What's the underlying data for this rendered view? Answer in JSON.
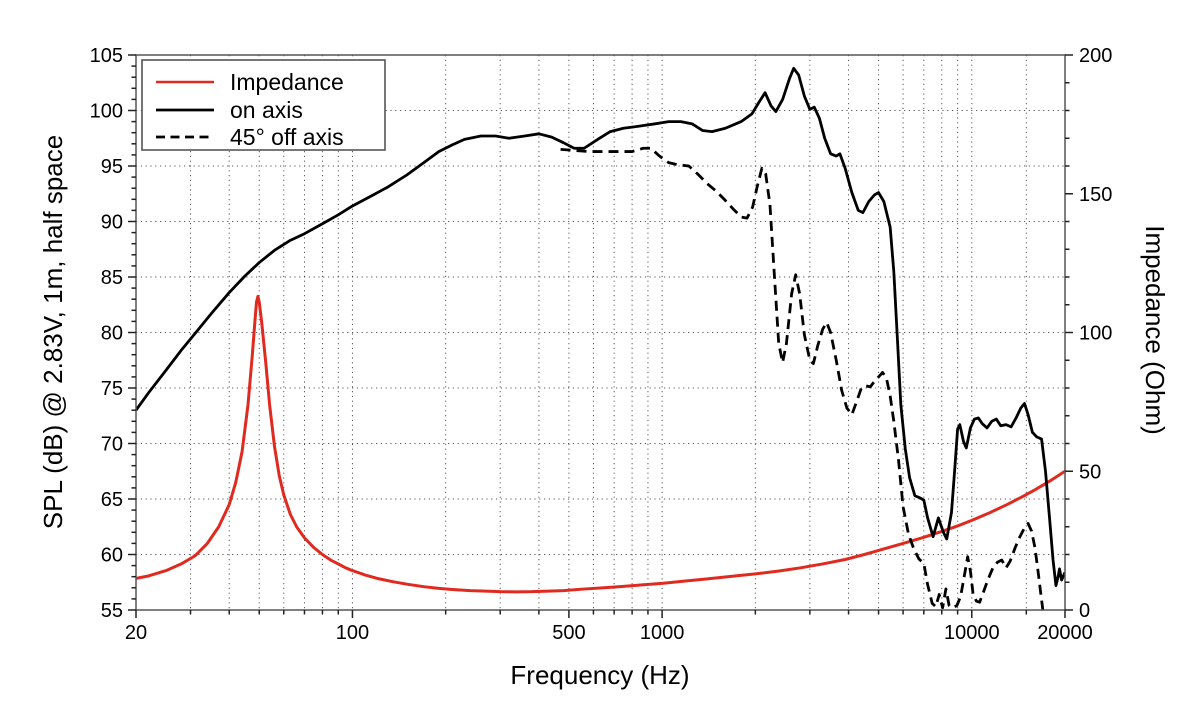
{
  "figure": {
    "background": "#ffffff"
  },
  "chart_data": {
    "type": "line",
    "title": "",
    "x_axis": {
      "label": "Frequency (Hz)",
      "scale": "log",
      "min": 20,
      "max": 20000,
      "major_ticks": [
        20,
        100,
        500,
        1000,
        10000,
        20000
      ],
      "major_tick_labels": [
        "20",
        "100",
        "500",
        "1000",
        "10000",
        "20000"
      ],
      "minor_ticks": [
        30,
        40,
        50,
        60,
        70,
        80,
        90,
        200,
        300,
        400,
        600,
        700,
        800,
        900,
        2000,
        3000,
        4000,
        5000,
        6000,
        7000,
        8000,
        9000,
        15000
      ],
      "grid": "dotted"
    },
    "y_axis_left": {
      "label": "SPL (dB) @ 2.83V, 1m, half space",
      "min": 55,
      "max": 105,
      "major_ticks": [
        55,
        60,
        65,
        70,
        75,
        80,
        85,
        90,
        95,
        100,
        105
      ],
      "minor_tick_step": 1,
      "grid_lines": [
        60,
        65,
        70,
        75,
        80,
        85,
        90,
        95,
        100
      ]
    },
    "y_axis_right": {
      "label": "Impedance (Ohm)",
      "min": 0,
      "max": 200,
      "major_ticks": [
        0,
        50,
        100,
        150,
        200
      ],
      "minor_tick_step": 10
    },
    "legend": {
      "position": "top-left",
      "entries": [
        {
          "label": "Impedance",
          "color": "#e02a20",
          "style": "solid"
        },
        {
          "label": "on axis",
          "color": "#000000",
          "style": "solid"
        },
        {
          "label": "45° off axis",
          "color": "#000000",
          "style": "dashed"
        }
      ]
    },
    "series": [
      {
        "name": "Impedance",
        "axis": "right",
        "unit": "Ohm",
        "color": "#e02a20",
        "style": "solid",
        "points": [
          [
            20,
            11.4
          ],
          [
            22,
            12.3
          ],
          [
            25,
            14.2
          ],
          [
            28,
            16.6
          ],
          [
            31,
            19.5
          ],
          [
            34,
            24
          ],
          [
            37,
            30
          ],
          [
            40,
            38
          ],
          [
            42,
            46
          ],
          [
            44,
            57
          ],
          [
            46,
            74
          ],
          [
            47.5,
            92
          ],
          [
            48.5,
            105
          ],
          [
            49,
            111
          ],
          [
            49.5,
            113
          ],
          [
            50,
            111
          ],
          [
            51,
            103
          ],
          [
            52.5,
            89
          ],
          [
            54,
            74
          ],
          [
            56,
            59
          ],
          [
            58,
            48.5
          ],
          [
            60,
            41.5
          ],
          [
            63,
            34.5
          ],
          [
            66,
            30
          ],
          [
            70,
            26
          ],
          [
            75,
            22.5
          ],
          [
            80,
            20
          ],
          [
            85,
            18
          ],
          [
            90,
            16.6
          ],
          [
            95,
            15.2
          ],
          [
            100,
            14.2
          ],
          [
            110,
            12.6
          ],
          [
            120,
            11.4
          ],
          [
            135,
            10.2
          ],
          [
            150,
            9.3
          ],
          [
            170,
            8.4
          ],
          [
            190,
            7.8
          ],
          [
            210,
            7.4
          ],
          [
            240,
            7
          ],
          [
            270,
            6.8
          ],
          [
            300,
            6.6
          ],
          [
            340,
            6.55
          ],
          [
            380,
            6.6
          ],
          [
            430,
            6.8
          ],
          [
            480,
            7
          ],
          [
            550,
            7.5
          ],
          [
            650,
            8
          ],
          [
            750,
            8.5
          ],
          [
            850,
            9
          ],
          [
            1000,
            9.6
          ],
          [
            1200,
            10.5
          ],
          [
            1400,
            11.2
          ],
          [
            1700,
            12.2
          ],
          [
            2000,
            13
          ],
          [
            2400,
            14.1
          ],
          [
            2800,
            15.2
          ],
          [
            3300,
            16.6
          ],
          [
            3900,
            18.2
          ],
          [
            4500,
            20
          ],
          [
            5200,
            22
          ],
          [
            6000,
            24
          ],
          [
            7000,
            26.2
          ],
          [
            8000,
            28.3
          ],
          [
            9000,
            30.3
          ],
          [
            10000,
            32.3
          ],
          [
            11500,
            35.2
          ],
          [
            13000,
            38
          ],
          [
            14500,
            40.7
          ],
          [
            16000,
            43.3
          ],
          [
            18000,
            46.7
          ],
          [
            20000,
            50
          ]
        ]
      },
      {
        "name": "on axis",
        "axis": "left",
        "unit": "dB",
        "color": "#000000",
        "style": "solid",
        "points": [
          [
            20,
            73
          ],
          [
            22,
            74.6
          ],
          [
            25,
            76.6
          ],
          [
            28,
            78.4
          ],
          [
            31,
            79.9
          ],
          [
            35,
            81.7
          ],
          [
            40,
            83.6
          ],
          [
            45,
            85.1
          ],
          [
            50,
            86.3
          ],
          [
            56,
            87.4
          ],
          [
            63,
            88.3
          ],
          [
            70,
            88.9
          ],
          [
            80,
            89.8
          ],
          [
            90,
            90.6
          ],
          [
            100,
            91.4
          ],
          [
            115,
            92.3
          ],
          [
            130,
            93.1
          ],
          [
            150,
            94.2
          ],
          [
            170,
            95.3
          ],
          [
            190,
            96.3
          ],
          [
            210,
            96.9
          ],
          [
            230,
            97.4
          ],
          [
            260,
            97.7
          ],
          [
            290,
            97.7
          ],
          [
            320,
            97.5
          ],
          [
            360,
            97.7
          ],
          [
            400,
            97.9
          ],
          [
            440,
            97.6
          ],
          [
            480,
            97.1
          ],
          [
            520,
            96.6
          ],
          [
            560,
            96.6
          ],
          [
            620,
            97.4
          ],
          [
            680,
            98.1
          ],
          [
            750,
            98.4
          ],
          [
            850,
            98.6
          ],
          [
            950,
            98.8
          ],
          [
            1050,
            99
          ],
          [
            1150,
            99
          ],
          [
            1250,
            98.8
          ],
          [
            1350,
            98.2
          ],
          [
            1450,
            98.1
          ],
          [
            1600,
            98.4
          ],
          [
            1800,
            99
          ],
          [
            1950,
            99.7
          ],
          [
            2050,
            100.7
          ],
          [
            2150,
            101.6
          ],
          [
            2250,
            100.4
          ],
          [
            2330,
            99.9
          ],
          [
            2450,
            101
          ],
          [
            2580,
            102.9
          ],
          [
            2660,
            103.8
          ],
          [
            2760,
            103.2
          ],
          [
            2880,
            101.3
          ],
          [
            3000,
            100.1
          ],
          [
            3100,
            100.3
          ],
          [
            3220,
            99.3
          ],
          [
            3350,
            97.5
          ],
          [
            3500,
            96.1
          ],
          [
            3650,
            95.9
          ],
          [
            3750,
            96.1
          ],
          [
            3900,
            94.8
          ],
          [
            4100,
            92.6
          ],
          [
            4300,
            91
          ],
          [
            4450,
            90.8
          ],
          [
            4650,
            91.8
          ],
          [
            4850,
            92.4
          ],
          [
            5000,
            92.6
          ],
          [
            5200,
            91.8
          ],
          [
            5450,
            89.5
          ],
          [
            5600,
            85.5
          ],
          [
            5750,
            79.5
          ],
          [
            5900,
            73.5
          ],
          [
            6100,
            69.5
          ],
          [
            6300,
            66.9
          ],
          [
            6550,
            65.3
          ],
          [
            6800,
            65.1
          ],
          [
            7000,
            64.9
          ],
          [
            7200,
            63.3
          ],
          [
            7500,
            61.6
          ],
          [
            7800,
            63.3
          ],
          [
            8100,
            62
          ],
          [
            8300,
            61.4
          ],
          [
            8600,
            63.8
          ],
          [
            8800,
            67.5
          ],
          [
            9000,
            71.3
          ],
          [
            9150,
            71.7
          ],
          [
            9400,
            70.2
          ],
          [
            9600,
            69.6
          ],
          [
            9900,
            71.4
          ],
          [
            10200,
            72.2
          ],
          [
            10500,
            72.3
          ],
          [
            10800,
            71.8
          ],
          [
            11200,
            71.4
          ],
          [
            11600,
            72
          ],
          [
            12000,
            72.2
          ],
          [
            12400,
            71.6
          ],
          [
            12900,
            71.7
          ],
          [
            13400,
            71.5
          ],
          [
            13900,
            72.3
          ],
          [
            14400,
            73.2
          ],
          [
            14800,
            73.6
          ],
          [
            15200,
            72.6
          ],
          [
            15700,
            71
          ],
          [
            16200,
            70.6
          ],
          [
            16800,
            70.4
          ],
          [
            17300,
            67.5
          ],
          [
            17800,
            63.5
          ],
          [
            18300,
            59.5
          ],
          [
            18700,
            57.2
          ],
          [
            19000,
            58
          ],
          [
            19200,
            58.7
          ],
          [
            19500,
            57.7
          ],
          [
            20000,
            58.4
          ]
        ]
      },
      {
        "name": "45° off axis",
        "axis": "left",
        "unit": "dB",
        "color": "#000000",
        "style": "dashed",
        "points": [
          [
            470,
            96.5
          ],
          [
            520,
            96.4
          ],
          [
            580,
            96.3
          ],
          [
            650,
            96.3
          ],
          [
            720,
            96.3
          ],
          [
            800,
            96.3
          ],
          [
            870,
            96.6
          ],
          [
            920,
            96.6
          ],
          [
            980,
            95.9
          ],
          [
            1050,
            95.3
          ],
          [
            1130,
            95.1
          ],
          [
            1220,
            95
          ],
          [
            1300,
            94.3
          ],
          [
            1400,
            93.4
          ],
          [
            1500,
            92.7
          ],
          [
            1600,
            91.9
          ],
          [
            1700,
            91.1
          ],
          [
            1800,
            90.4
          ],
          [
            1880,
            90.3
          ],
          [
            1960,
            91.3
          ],
          [
            2030,
            93.2
          ],
          [
            2100,
            94.8
          ],
          [
            2160,
            94.3
          ],
          [
            2230,
            91.5
          ],
          [
            2300,
            85.5
          ],
          [
            2380,
            79
          ],
          [
            2450,
            77.3
          ],
          [
            2520,
            79
          ],
          [
            2620,
            83.5
          ],
          [
            2700,
            85.2
          ],
          [
            2780,
            83.5
          ],
          [
            2880,
            79.8
          ],
          [
            3000,
            77.5
          ],
          [
            3080,
            77.2
          ],
          [
            3180,
            78.8
          ],
          [
            3300,
            80.3
          ],
          [
            3400,
            80.9
          ],
          [
            3500,
            80
          ],
          [
            3650,
            77.5
          ],
          [
            3800,
            74.8
          ],
          [
            3950,
            73.2
          ],
          [
            4100,
            72.6
          ],
          [
            4250,
            73.8
          ],
          [
            4400,
            75
          ],
          [
            4550,
            75.2
          ],
          [
            4700,
            75.1
          ],
          [
            4850,
            75.6
          ],
          [
            5000,
            76
          ],
          [
            5150,
            76.4
          ],
          [
            5300,
            75.9
          ],
          [
            5450,
            74.3
          ],
          [
            5600,
            72
          ],
          [
            5800,
            68.5
          ],
          [
            6000,
            64.3
          ],
          [
            6250,
            61.8
          ],
          [
            6500,
            60.5
          ],
          [
            6750,
            59.6
          ],
          [
            7000,
            59.2
          ],
          [
            7200,
            57.3
          ],
          [
            7450,
            55.6
          ],
          [
            7650,
            55.3
          ],
          [
            7850,
            56.4
          ],
          [
            8050,
            55.2
          ],
          [
            8250,
            56.9
          ],
          [
            8450,
            55.4
          ],
          [
            8700,
            55.2
          ],
          [
            8950,
            55.4
          ],
          [
            9200,
            56.2
          ],
          [
            9450,
            58
          ],
          [
            9700,
            59.8
          ],
          [
            9900,
            58.5
          ],
          [
            10100,
            56.4
          ],
          [
            10350,
            55.8
          ],
          [
            10600,
            55.7
          ],
          [
            10900,
            56.6
          ],
          [
            11300,
            57.8
          ],
          [
            11700,
            58.8
          ],
          [
            12100,
            59.3
          ],
          [
            12500,
            59.5
          ],
          [
            12900,
            58.8
          ],
          [
            13300,
            59.4
          ],
          [
            13800,
            60.6
          ],
          [
            14300,
            61.6
          ],
          [
            14800,
            62.4
          ],
          [
            15200,
            62.8
          ],
          [
            15600,
            62.1
          ],
          [
            16000,
            60.6
          ],
          [
            16400,
            58.3
          ],
          [
            16700,
            56.5
          ],
          [
            17000,
            54.8
          ],
          [
            17200,
            53.2
          ]
        ]
      }
    ]
  }
}
